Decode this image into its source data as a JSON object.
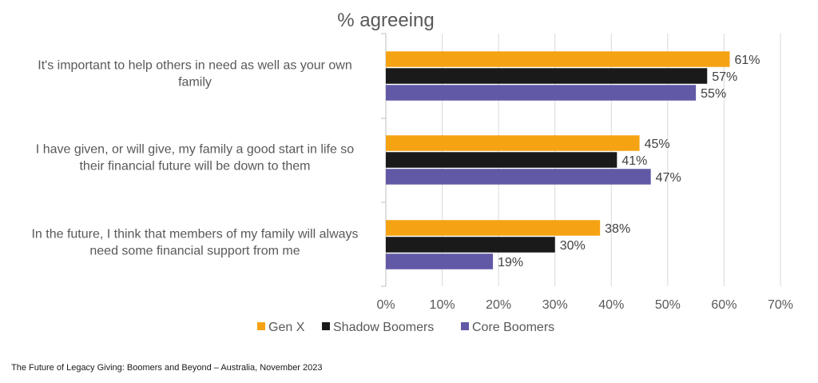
{
  "chart_data": {
    "type": "bar",
    "orientation": "horizontal",
    "title": "% agreeing",
    "categories": [
      "It's important to help others in need as well as your own family",
      "I have given, or will give, my family a good start in life so their financial future will be down to them",
      "In the future, I think that members of my family will always need some financial support from me"
    ],
    "category_lines": [
      [
        "It's important to help others in need as well as your own",
        "family"
      ],
      [
        "I have given, or will give, my family a good start in life so",
        "their financial future will be down to them"
      ],
      [
        "In the future, I think that members of my family will always",
        "need some financial support from me"
      ]
    ],
    "series": [
      {
        "name": "Gen X",
        "color": "#F5A313",
        "values": [
          61,
          45,
          38
        ]
      },
      {
        "name": "Shadow Boomers",
        "color": "#1A1A1A",
        "values": [
          57,
          41,
          30
        ]
      },
      {
        "name": "Core Boomers",
        "color": "#6159A6",
        "values": [
          55,
          47,
          19
        ]
      }
    ],
    "value_suffix": "%",
    "xlim": [
      0,
      70
    ],
    "xticks": [
      0,
      10,
      20,
      30,
      40,
      50,
      60,
      70
    ],
    "xtick_labels": [
      "0%",
      "10%",
      "20%",
      "30%",
      "40%",
      "50%",
      "60%",
      "70%"
    ],
    "grid": "vertical",
    "legend_position": "bottom"
  },
  "footer": {
    "source": "The Future of Legacy Giving: Boomers and Beyond – Australia, November 2023"
  }
}
